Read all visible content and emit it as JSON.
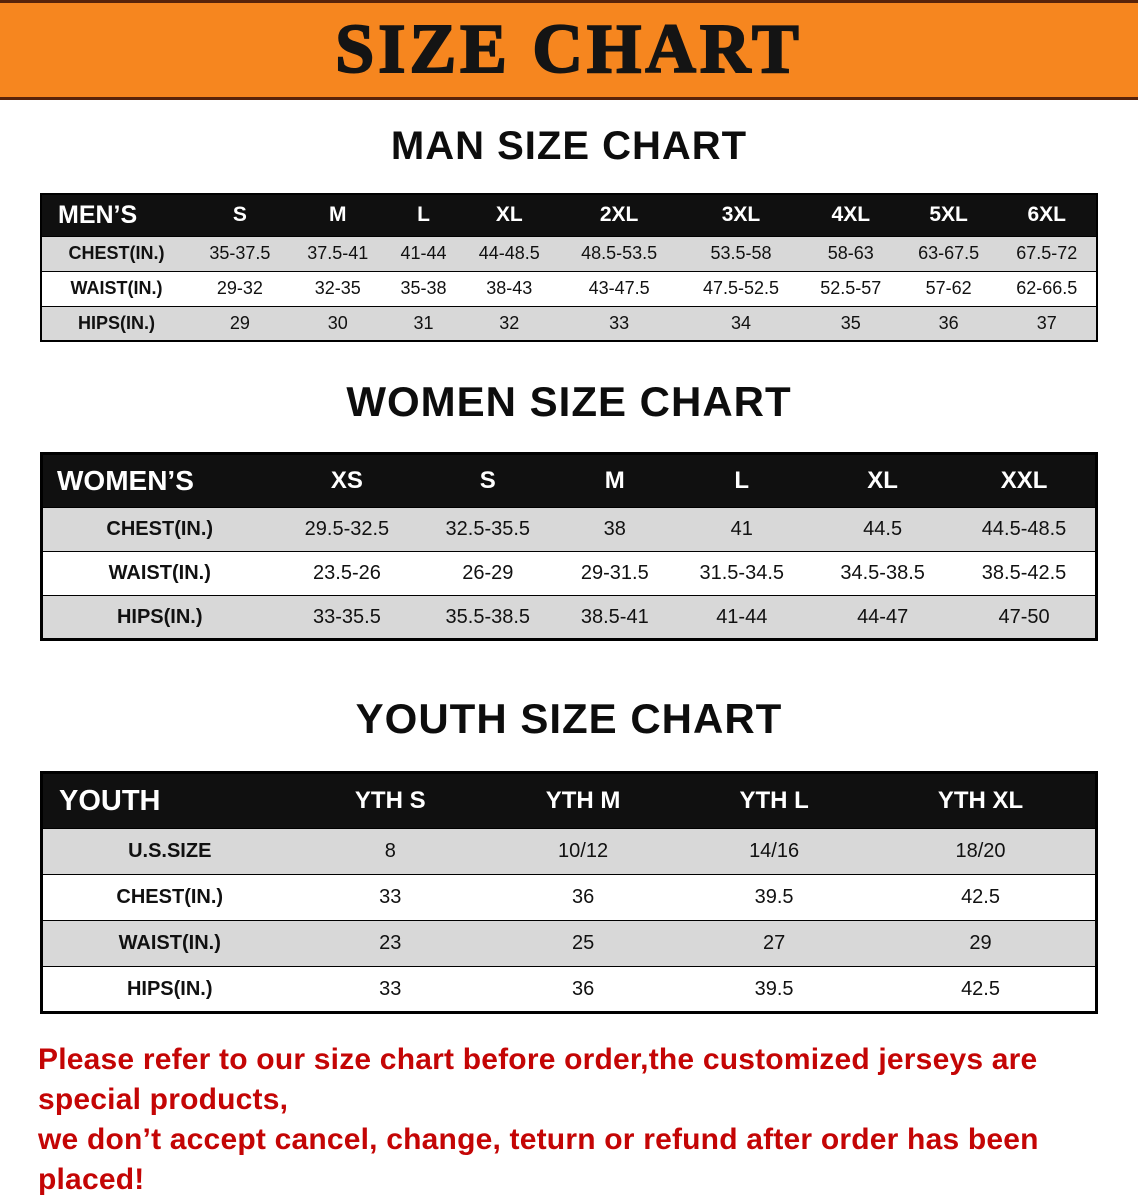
{
  "banner": {
    "title": "SIZE CHART"
  },
  "colors": {
    "banner_bg": "#f6861f",
    "table_header_bg": "#101010",
    "row_shade": "#d8d8d8",
    "footer_text": "#c40505"
  },
  "sections": [
    {
      "id": "men",
      "title": "MAN SIZE CHART",
      "table": {
        "header_label": "MEN’S",
        "columns": [
          "S",
          "M",
          "L",
          "XL",
          "2XL",
          "3XL",
          "4XL",
          "5XL",
          "6XL"
        ],
        "rows": [
          {
            "label": "CHEST(IN.)",
            "values": [
              "35-37.5",
              "37.5-41",
              "41-44",
              "44-48.5",
              "48.5-53.5",
              "53.5-58",
              "58-63",
              "63-67.5",
              "67.5-72"
            ]
          },
          {
            "label": "WAIST(IN.)",
            "values": [
              "29-32",
              "32-35",
              "35-38",
              "38-43",
              "43-47.5",
              "47.5-52.5",
              "52.5-57",
              "57-62",
              "62-66.5"
            ]
          },
          {
            "label": "HIPS(IN.)",
            "values": [
              "29",
              "30",
              "31",
              "32",
              "33",
              "34",
              "35",
              "36",
              "37"
            ]
          }
        ]
      }
    },
    {
      "id": "women",
      "title": "WOMEN SIZE CHART",
      "table": {
        "header_label": "WOMEN’S",
        "columns": [
          "XS",
          "S",
          "M",
          "L",
          "XL",
          "XXL"
        ],
        "rows": [
          {
            "label": "CHEST(IN.)",
            "values": [
              "29.5-32.5",
              "32.5-35.5",
              "38",
              "41",
              "44.5",
              "44.5-48.5"
            ]
          },
          {
            "label": "WAIST(IN.)",
            "values": [
              "23.5-26",
              "26-29",
              "29-31.5",
              "31.5-34.5",
              "34.5-38.5",
              "38.5-42.5"
            ]
          },
          {
            "label": "HIPS(IN.)",
            "values": [
              "33-35.5",
              "35.5-38.5",
              "38.5-41",
              "41-44",
              "44-47",
              "47-50"
            ]
          }
        ]
      }
    },
    {
      "id": "youth",
      "title": "YOUTH SIZE CHART",
      "table": {
        "header_label": "YOUTH",
        "columns": [
          "YTH S",
          "YTH M",
          "YTH L",
          "YTH XL"
        ],
        "rows": [
          {
            "label": "U.S.SIZE",
            "values": [
              "8",
              "10/12",
              "14/16",
              "18/20"
            ]
          },
          {
            "label": "CHEST(IN.)",
            "values": [
              "33",
              "36",
              "39.5",
              "42.5"
            ]
          },
          {
            "label": "WAIST(IN.)",
            "values": [
              "23",
              "25",
              "27",
              "29"
            ]
          },
          {
            "label": "HIPS(IN.)",
            "values": [
              "33",
              "36",
              "39.5",
              "42.5"
            ]
          }
        ]
      }
    }
  ],
  "footer": {
    "line1": "Please refer to our size chart before order,the customized jerseys are special products,",
    "line2": "we don’t accept cancel, change, teturn or refund after order has been placed!"
  }
}
